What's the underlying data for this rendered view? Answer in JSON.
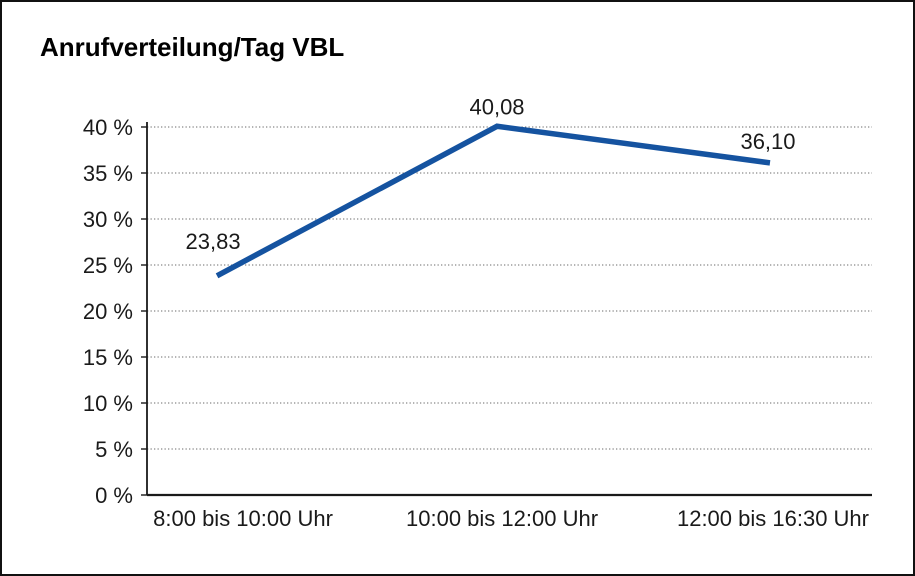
{
  "title": "Anrufverteilung/Tag VBL",
  "chart_data": {
    "type": "line",
    "title": "Anrufverteilung/Tag VBL",
    "categories": [
      "8:00 bis 10:00 Uhr",
      "10:00 bis 12:00 Uhr",
      "12:00 bis 16:30 Uhr"
    ],
    "series": [
      {
        "name": "Anrufverteilung/Tag VBL",
        "values": [
          23.83,
          40.08,
          36.1
        ],
        "point_labels": [
          "23,83",
          "40,08",
          "36,10"
        ]
      }
    ],
    "xlabel": "",
    "ylabel": "",
    "ylim": [
      0,
      40
    ],
    "ytick_step": 5,
    "ytick_labels": [
      "0 %",
      "5 %",
      "10 %",
      "15 %",
      "20 %",
      "25 %",
      "30 %",
      "35 %",
      "40 %"
    ],
    "grid": "horizontal-dotted",
    "legend_position": "none",
    "data_labels_shown": true
  },
  "colors": {
    "line": "#1553A0",
    "grid": "#6a6a6a",
    "axis": "#1a1a1a",
    "text": "#1a1a1a",
    "frame_border": "#111111",
    "background": "#ffffff"
  }
}
